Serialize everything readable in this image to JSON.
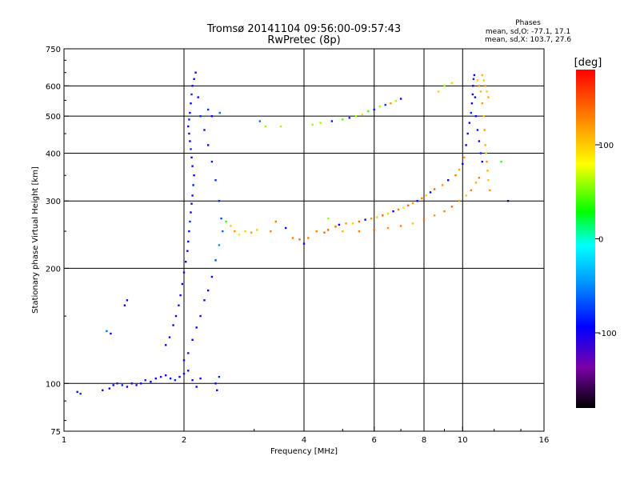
{
  "chart_data": {
    "type": "scatter",
    "title": "Tromsø 20141104 09:56:00-09:57:43",
    "subtitle": "RwPretec (8p)",
    "xlabel": "Frequency [MHz]",
    "ylabel": "Stationary phase Virtual Height [km]",
    "x_scale": "log",
    "y_scale": "log",
    "xlim": [
      1,
      16
    ],
    "ylim": [
      75,
      750
    ],
    "x_ticks": [
      1,
      2,
      4,
      6,
      8,
      10,
      16
    ],
    "x_tick_labels": [
      "1",
      "2",
      "4",
      "6",
      "8",
      "10",
      "16"
    ],
    "y_ticks": [
      75,
      100,
      200,
      300,
      400,
      500,
      600,
      750
    ],
    "y_tick_labels": [
      "75",
      "100",
      "200",
      "300",
      "400",
      "500",
      "600",
      "750"
    ],
    "grid": true,
    "phase_info": {
      "heading": "Phases",
      "line_o": "mean, sd,O: -77.1, 17.1",
      "line_x": "mean, sd,X: 103.7, 27.6"
    },
    "colorbar": {
      "label": "[deg]",
      "range": [
        -180,
        180
      ],
      "ticks": [
        100,
        0,
        -100
      ],
      "tick_labels": [
        "100",
        "0",
        "-100"
      ]
    },
    "series": [
      {
        "points": [
          [
            1.08,
            95,
            -90
          ],
          [
            1.1,
            94,
            -80
          ],
          [
            1.25,
            96,
            -110
          ],
          [
            1.3,
            97,
            -100
          ],
          [
            1.33,
            99,
            -90
          ],
          [
            1.36,
            100,
            -110
          ],
          [
            1.4,
            99,
            -80
          ],
          [
            1.44,
            98,
            -100
          ],
          [
            1.48,
            100,
            -90
          ],
          [
            1.52,
            99,
            -110
          ],
          [
            1.56,
            100,
            -100
          ],
          [
            1.6,
            102,
            -80
          ],
          [
            1.65,
            101,
            -100
          ],
          [
            1.7,
            103,
            -90
          ],
          [
            1.75,
            104,
            -110
          ],
          [
            1.8,
            105,
            -100
          ],
          [
            1.85,
            103,
            -90
          ],
          [
            1.9,
            102,
            -80
          ],
          [
            1.95,
            104,
            -100
          ],
          [
            2.0,
            106,
            -90
          ],
          [
            2.05,
            108,
            -110
          ],
          [
            2.1,
            102,
            -100
          ],
          [
            2.15,
            98,
            -90
          ],
          [
            2.2,
            103,
            -100
          ],
          [
            2.4,
            100,
            -90
          ],
          [
            2.42,
            96,
            -100
          ],
          [
            2.45,
            104,
            -80
          ],
          [
            1.28,
            137,
            -60
          ],
          [
            1.31,
            135,
            -100
          ],
          [
            1.42,
            160,
            -100
          ],
          [
            1.44,
            165,
            -90
          ],
          [
            1.8,
            126,
            -90
          ],
          [
            1.84,
            132,
            -100
          ],
          [
            1.88,
            142,
            -95
          ],
          [
            1.91,
            150,
            -100
          ],
          [
            1.94,
            160,
            -90
          ],
          [
            1.96,
            170,
            -100
          ],
          [
            1.98,
            182,
            -90
          ],
          [
            2.0,
            195,
            -100
          ],
          [
            2.02,
            208,
            -95
          ],
          [
            2.04,
            222,
            -100
          ],
          [
            2.05,
            235,
            -90
          ],
          [
            2.06,
            250,
            -100
          ],
          [
            2.07,
            265,
            -80
          ],
          [
            2.08,
            280,
            -100
          ],
          [
            2.09,
            295,
            -90
          ],
          [
            2.1,
            310,
            -100
          ],
          [
            2.11,
            330,
            -85
          ],
          [
            2.12,
            350,
            -100
          ],
          [
            2.1,
            370,
            -90
          ],
          [
            2.09,
            390,
            -100
          ],
          [
            2.08,
            410,
            -80
          ],
          [
            2.07,
            430,
            -100
          ],
          [
            2.06,
            450,
            -90
          ],
          [
            2.05,
            470,
            -100
          ],
          [
            2.06,
            490,
            -80
          ],
          [
            2.07,
            510,
            -100
          ],
          [
            2.08,
            540,
            -90
          ],
          [
            2.09,
            570,
            -80
          ],
          [
            2.1,
            600,
            -100
          ],
          [
            2.12,
            625,
            -90
          ],
          [
            2.14,
            650,
            -100
          ],
          [
            2.17,
            560,
            -90
          ],
          [
            2.2,
            500,
            -80
          ],
          [
            2.25,
            460,
            -100
          ],
          [
            2.3,
            420,
            -90
          ],
          [
            2.35,
            380,
            -85
          ],
          [
            2.4,
            340,
            -80
          ],
          [
            2.45,
            300,
            -80
          ],
          [
            2.48,
            270,
            -70
          ],
          [
            2.5,
            250,
            -60
          ],
          [
            2.45,
            230,
            -50
          ],
          [
            2.4,
            210,
            -70
          ],
          [
            2.35,
            190,
            -90
          ],
          [
            2.3,
            175,
            -100
          ],
          [
            2.25,
            165,
            -90
          ],
          [
            2.2,
            150,
            -100
          ],
          [
            2.15,
            140,
            -90
          ],
          [
            2.1,
            130,
            -100
          ],
          [
            2.05,
            120,
            -110
          ],
          [
            2.0,
            115,
            -100
          ],
          [
            2.3,
            520,
            -80
          ],
          [
            2.35,
            500,
            -90
          ],
          [
            2.46,
            510,
            -60
          ],
          [
            2.55,
            265,
            40
          ],
          [
            2.62,
            258,
            100
          ],
          [
            2.68,
            250,
            120
          ],
          [
            2.75,
            245,
            90
          ],
          [
            2.85,
            250,
            100
          ],
          [
            2.95,
            248,
            120
          ],
          [
            3.05,
            252,
            100
          ],
          [
            3.1,
            485,
            -60
          ],
          [
            3.2,
            470,
            60
          ],
          [
            3.3,
            250,
            130
          ],
          [
            3.4,
            265,
            130
          ],
          [
            3.5,
            470,
            60
          ],
          [
            3.6,
            255,
            -90
          ],
          [
            3.75,
            240,
            130
          ],
          [
            3.9,
            238,
            140
          ],
          [
            4.0,
            232,
            -100
          ],
          [
            4.1,
            240,
            130
          ],
          [
            4.2,
            475,
            60
          ],
          [
            4.3,
            250,
            130
          ],
          [
            4.4,
            480,
            60
          ],
          [
            4.5,
            248,
            140
          ],
          [
            4.6,
            270,
            60
          ],
          [
            4.7,
            485,
            -90
          ],
          [
            4.8,
            257,
            140
          ],
          [
            4.9,
            260,
            -100
          ],
          [
            5.0,
            490,
            40
          ],
          [
            5.1,
            262,
            120
          ],
          [
            5.2,
            495,
            -80
          ],
          [
            5.3,
            262,
            100
          ],
          [
            5.4,
            500,
            60
          ],
          [
            5.5,
            265,
            140
          ],
          [
            5.6,
            505,
            90
          ],
          [
            5.7,
            268,
            -100
          ],
          [
            5.8,
            515,
            40
          ],
          [
            5.9,
            270,
            120
          ],
          [
            6.0,
            520,
            -90
          ],
          [
            6.1,
            272,
            100
          ],
          [
            6.2,
            530,
            60
          ],
          [
            6.3,
            275,
            140
          ],
          [
            6.4,
            535,
            -80
          ],
          [
            6.5,
            278,
            100
          ],
          [
            6.6,
            540,
            120
          ],
          [
            6.7,
            282,
            -100
          ],
          [
            6.8,
            548,
            60
          ],
          [
            6.9,
            285,
            130
          ],
          [
            7.0,
            555,
            -100
          ],
          [
            7.1,
            288,
            90
          ],
          [
            7.3,
            292,
            140
          ],
          [
            7.5,
            296,
            120
          ],
          [
            7.7,
            300,
            -100
          ],
          [
            7.9,
            305,
            130
          ],
          [
            8.1,
            310,
            100
          ],
          [
            8.3,
            316,
            -90
          ],
          [
            8.5,
            322,
            140
          ],
          [
            8.7,
            580,
            100
          ],
          [
            8.9,
            330,
            120
          ],
          [
            9.0,
            600,
            60
          ],
          [
            9.2,
            340,
            -100
          ],
          [
            9.4,
            610,
            100
          ],
          [
            9.6,
            350,
            130
          ],
          [
            9.8,
            362,
            110
          ],
          [
            10.0,
            375,
            -100
          ],
          [
            10.1,
            390,
            120
          ],
          [
            10.2,
            420,
            -100
          ],
          [
            10.3,
            450,
            -90
          ],
          [
            10.4,
            480,
            -100
          ],
          [
            10.5,
            510,
            -80
          ],
          [
            10.55,
            540,
            -100
          ],
          [
            10.6,
            570,
            -90
          ],
          [
            10.62,
            600,
            -100
          ],
          [
            10.65,
            625,
            -80
          ],
          [
            10.7,
            640,
            -100
          ],
          [
            10.75,
            560,
            -90
          ],
          [
            10.8,
            500,
            -100
          ],
          [
            10.9,
            460,
            -90
          ],
          [
            11.0,
            430,
            -100
          ],
          [
            11.1,
            400,
            -80
          ],
          [
            11.2,
            380,
            -100
          ],
          [
            10.9,
            620,
            100
          ],
          [
            11.0,
            600,
            120
          ],
          [
            11.1,
            580,
            110
          ],
          [
            11.2,
            540,
            120
          ],
          [
            11.3,
            500,
            100
          ],
          [
            11.35,
            460,
            120
          ],
          [
            11.4,
            420,
            110
          ],
          [
            11.45,
            400,
            100
          ],
          [
            11.5,
            380,
            120
          ],
          [
            11.55,
            360,
            110
          ],
          [
            11.6,
            340,
            100
          ],
          [
            11.7,
            320,
            120
          ],
          [
            11.2,
            640,
            110
          ],
          [
            11.3,
            620,
            100
          ],
          [
            11.4,
            600,
            120
          ],
          [
            11.5,
            580,
            100
          ],
          [
            11.6,
            560,
            110
          ],
          [
            12.5,
            380,
            40
          ],
          [
            13.0,
            300,
            -160
          ],
          [
            11.0,
            345,
            130
          ],
          [
            10.8,
            335,
            110
          ],
          [
            10.5,
            320,
            130
          ],
          [
            10.2,
            310,
            100
          ],
          [
            9.8,
            300,
            120
          ],
          [
            9.4,
            290,
            140
          ],
          [
            9.0,
            282,
            130
          ],
          [
            8.5,
            275,
            120
          ],
          [
            8.0,
            268,
            140
          ],
          [
            7.5,
            262,
            100
          ],
          [
            7.0,
            258,
            130
          ],
          [
            6.5,
            255,
            120
          ],
          [
            6.0,
            252,
            140
          ],
          [
            5.5,
            250,
            130
          ],
          [
            5.0,
            250,
            110
          ],
          [
            4.6,
            252,
            140
          ]
        ]
      }
    ]
  }
}
